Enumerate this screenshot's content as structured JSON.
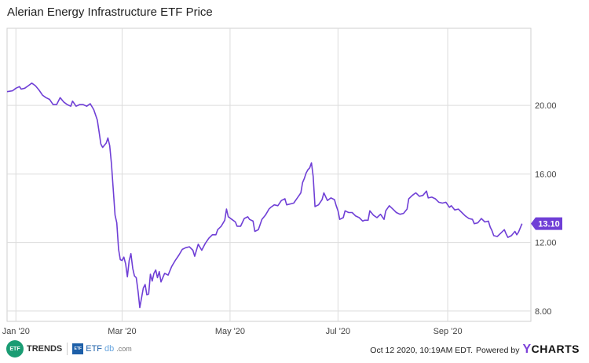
{
  "title": "Alerian Energy Infrastructure ETF Price",
  "footer": {
    "timestamp": "Oct 12 2020, 10:19AM EDT.",
    "powered_by": "Powered by",
    "brand_y": "Y",
    "brand_rest": "CHARTS"
  },
  "logos": {
    "etf_trends_mark": "ETF",
    "etf_trends_label": "TRENDS",
    "etfdb_mark": "ETF",
    "etfdb_label_a": "ETF",
    "etfdb_label_b": "db",
    "etfdb_label_c": ".com"
  },
  "colors": {
    "line": "#6f3fd6",
    "grid": "#dcdcdc",
    "badge": "#6f3fd6"
  },
  "chart_data": {
    "type": "line",
    "title": "Alerian Energy Infrastructure ETF Price",
    "x_ticks": [
      {
        "label": "Jan '20",
        "day": 0
      },
      {
        "label": "Mar '20",
        "day": 60
      },
      {
        "label": "May '20",
        "day": 121
      },
      {
        "label": "Jul '20",
        "day": 182
      },
      {
        "label": "Sep '20",
        "day": 244
      }
    ],
    "y_ticks": [
      "8.00",
      "12.00",
      "16.00",
      "20.00"
    ],
    "ylim": [
      7.4,
      24.5
    ],
    "grid": true,
    "last_value_label": "13.10",
    "series": [
      {
        "values": [
          [
            -5,
            20.8
          ],
          [
            -2,
            20.85
          ],
          [
            0,
            21.0
          ],
          [
            2,
            21.1
          ],
          [
            3,
            20.95
          ],
          [
            5,
            21.0
          ],
          [
            7,
            21.15
          ],
          [
            9,
            21.3
          ],
          [
            11,
            21.15
          ],
          [
            13,
            20.9
          ],
          [
            15,
            20.6
          ],
          [
            17,
            20.45
          ],
          [
            19,
            20.35
          ],
          [
            21,
            20.05
          ],
          [
            23,
            20.05
          ],
          [
            25,
            20.45
          ],
          [
            27,
            20.2
          ],
          [
            29,
            20.05
          ],
          [
            31,
            19.95
          ],
          [
            32,
            20.25
          ],
          [
            34,
            19.95
          ],
          [
            36,
            20.05
          ],
          [
            38,
            20.05
          ],
          [
            40,
            19.95
          ],
          [
            42,
            20.1
          ],
          [
            44,
            19.75
          ],
          [
            46,
            19.15
          ],
          [
            47,
            18.45
          ],
          [
            48,
            17.75
          ],
          [
            49,
            17.55
          ],
          [
            51,
            17.8
          ],
          [
            52,
            18.1
          ],
          [
            53,
            17.65
          ],
          [
            54,
            16.6
          ],
          [
            55,
            15.1
          ],
          [
            56,
            13.6
          ],
          [
            57,
            13.15
          ],
          [
            58,
            11.6
          ],
          [
            59,
            11.0
          ],
          [
            60,
            10.95
          ],
          [
            61,
            11.15
          ],
          [
            62,
            10.75
          ],
          [
            63,
            10.0
          ],
          [
            64,
            10.95
          ],
          [
            65,
            11.35
          ],
          [
            66,
            10.5
          ],
          [
            67,
            10.05
          ],
          [
            68,
            9.95
          ],
          [
            69,
            9.15
          ],
          [
            70,
            8.2
          ],
          [
            72,
            9.35
          ],
          [
            73,
            9.55
          ],
          [
            74,
            8.95
          ],
          [
            75,
            9.0
          ],
          [
            76,
            10.15
          ],
          [
            77,
            9.75
          ],
          [
            78,
            10.2
          ],
          [
            79,
            10.4
          ],
          [
            80,
            9.95
          ],
          [
            81,
            10.3
          ],
          [
            82,
            9.7
          ],
          [
            84,
            10.2
          ],
          [
            86,
            10.1
          ],
          [
            88,
            10.6
          ],
          [
            90,
            10.95
          ],
          [
            92,
            11.25
          ],
          [
            94,
            11.6
          ],
          [
            96,
            11.7
          ],
          [
            98,
            11.75
          ],
          [
            100,
            11.55
          ],
          [
            101,
            11.2
          ],
          [
            103,
            11.9
          ],
          [
            105,
            11.55
          ],
          [
            107,
            11.95
          ],
          [
            109,
            12.25
          ],
          [
            111,
            12.45
          ],
          [
            113,
            12.45
          ],
          [
            114,
            12.75
          ],
          [
            116,
            12.95
          ],
          [
            118,
            13.3
          ],
          [
            119,
            13.95
          ],
          [
            120,
            13.5
          ],
          [
            122,
            13.35
          ],
          [
            124,
            13.2
          ],
          [
            125,
            12.95
          ],
          [
            127,
            12.95
          ],
          [
            129,
            13.4
          ],
          [
            131,
            13.5
          ],
          [
            132,
            13.35
          ],
          [
            134,
            13.25
          ],
          [
            135,
            12.65
          ],
          [
            137,
            12.75
          ],
          [
            139,
            13.35
          ],
          [
            141,
            13.6
          ],
          [
            143,
            13.95
          ],
          [
            144,
            14.05
          ],
          [
            146,
            14.2
          ],
          [
            148,
            14.15
          ],
          [
            150,
            14.45
          ],
          [
            152,
            14.55
          ],
          [
            153,
            14.2
          ],
          [
            155,
            14.25
          ],
          [
            157,
            14.3
          ],
          [
            159,
            14.6
          ],
          [
            161,
            14.9
          ],
          [
            162,
            15.5
          ],
          [
            163,
            15.75
          ],
          [
            164,
            16.05
          ],
          [
            165,
            16.25
          ],
          [
            166,
            16.35
          ],
          [
            167,
            16.65
          ],
          [
            168,
            15.85
          ],
          [
            169,
            14.1
          ],
          [
            171,
            14.2
          ],
          [
            173,
            14.5
          ],
          [
            174,
            14.9
          ],
          [
            176,
            14.45
          ],
          [
            178,
            14.6
          ],
          [
            180,
            14.5
          ],
          [
            181,
            14.15
          ],
          [
            182,
            13.85
          ],
          [
            183,
            13.35
          ],
          [
            185,
            13.45
          ],
          [
            186,
            13.85
          ],
          [
            188,
            13.75
          ],
          [
            190,
            13.75
          ],
          [
            192,
            13.55
          ],
          [
            194,
            13.45
          ],
          [
            196,
            13.25
          ],
          [
            197,
            13.3
          ],
          [
            199,
            13.3
          ],
          [
            200,
            13.85
          ],
          [
            202,
            13.6
          ],
          [
            204,
            13.45
          ],
          [
            206,
            13.65
          ],
          [
            208,
            13.35
          ],
          [
            209,
            13.85
          ],
          [
            211,
            14.15
          ],
          [
            213,
            13.95
          ],
          [
            215,
            13.75
          ],
          [
            217,
            13.65
          ],
          [
            219,
            13.7
          ],
          [
            221,
            13.95
          ],
          [
            222,
            14.55
          ],
          [
            224,
            14.75
          ],
          [
            226,
            14.9
          ],
          [
            228,
            14.7
          ],
          [
            230,
            14.75
          ],
          [
            232,
            15.0
          ],
          [
            233,
            14.6
          ],
          [
            235,
            14.65
          ],
          [
            237,
            14.55
          ],
          [
            239,
            14.35
          ],
          [
            241,
            14.3
          ],
          [
            243,
            14.35
          ],
          [
            245,
            14.05
          ],
          [
            246,
            14.15
          ],
          [
            248,
            13.9
          ],
          [
            250,
            13.95
          ],
          [
            252,
            13.75
          ],
          [
            254,
            13.55
          ],
          [
            256,
            13.4
          ],
          [
            258,
            13.35
          ],
          [
            259,
            13.1
          ],
          [
            261,
            13.15
          ],
          [
            263,
            13.4
          ],
          [
            265,
            13.2
          ],
          [
            267,
            13.25
          ],
          [
            268,
            12.9
          ],
          [
            269,
            12.7
          ],
          [
            270,
            12.4
          ],
          [
            272,
            12.35
          ],
          [
            274,
            12.55
          ],
          [
            276,
            12.75
          ],
          [
            277,
            12.5
          ],
          [
            278,
            12.3
          ],
          [
            280,
            12.4
          ],
          [
            282,
            12.65
          ],
          [
            283,
            12.45
          ],
          [
            284,
            12.6
          ],
          [
            286,
            13.1
          ]
        ]
      }
    ]
  }
}
